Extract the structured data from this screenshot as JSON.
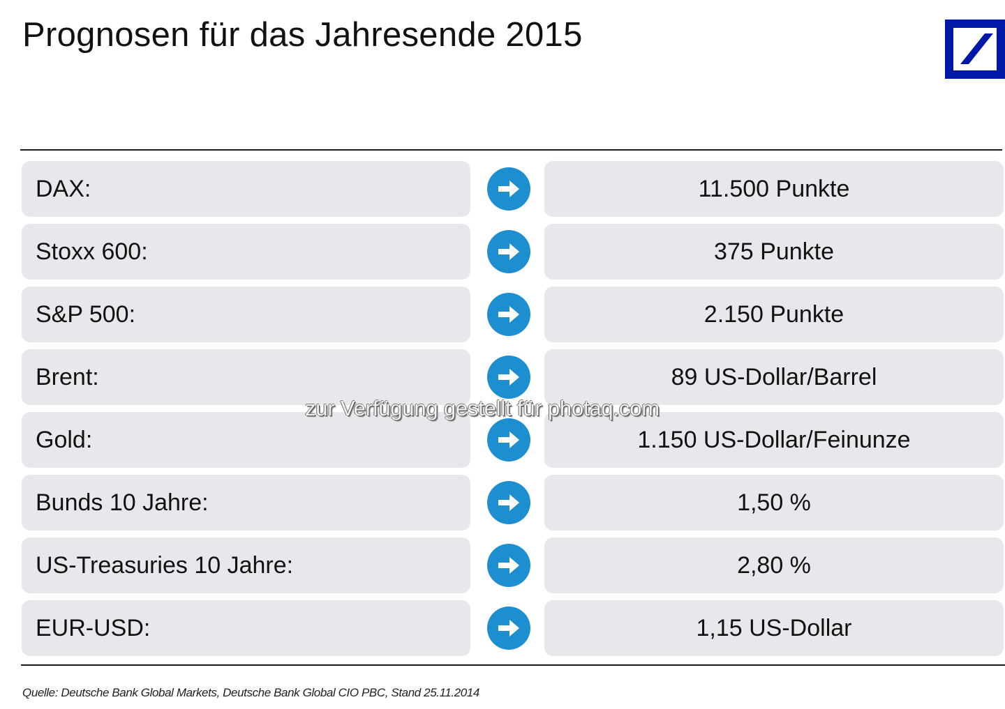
{
  "header": {
    "title": "Prognosen für das Jahresende 2015",
    "logo_icon": "deutsche-bank-logo-icon",
    "logo_color": "#0018a8"
  },
  "forecasts": [
    {
      "label": "DAX:",
      "value": "11.500 Punkte"
    },
    {
      "label": "Stoxx 600:",
      "value": "375 Punkte"
    },
    {
      "label": "S&P 500:",
      "value": "2.150 Punkte"
    },
    {
      "label": "Brent:",
      "value": "89 US-Dollar/Barrel"
    },
    {
      "label": "Gold:",
      "value": "1.150 US-Dollar/Feinunze"
    },
    {
      "label": "Bunds 10 Jahre:",
      "value": "1,50 %"
    },
    {
      "label": "US-Treasuries 10 Jahre:",
      "value": "2,80 %"
    },
    {
      "label": "EUR-USD:",
      "value": "1,15 US-Dollar"
    }
  ],
  "arrow_icon": "arrow-right-circle-icon",
  "colors": {
    "accent_blue": "#1d8fd1",
    "box_grey": "#e6e8ec",
    "rule": "#1a1a1a"
  },
  "watermark": "zur Verfügung gestellt für photaq.com",
  "footer": {
    "source": "Quelle: Deutsche Bank Global Markets, Deutsche Bank Global CIO PBC, Stand 25.11.2014"
  }
}
